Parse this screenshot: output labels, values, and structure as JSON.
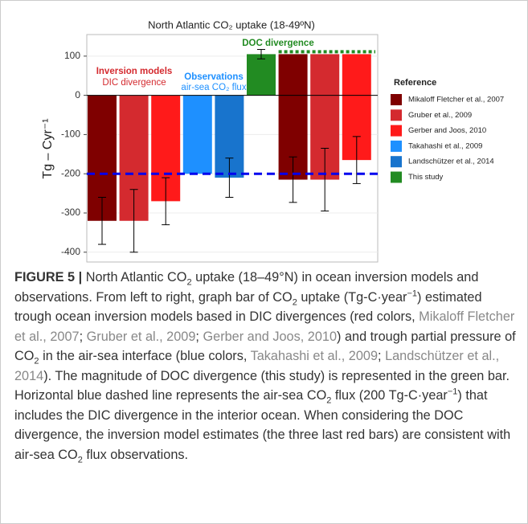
{
  "chart_data": {
    "type": "bar",
    "title": "North Atlantic CO₂ uptake (18-49ºN)",
    "ylabel": "Tg – Cyr⁻¹",
    "legend_title": "Reference",
    "series": [
      {
        "name": "Mikaloff Fletcher et al., 2007",
        "color": "#7f0000",
        "value": -320,
        "error": 60
      },
      {
        "name": "Gruber et al., 2009",
        "color": "#d42a2f",
        "value": -320,
        "error": 80
      },
      {
        "name": "Gerber and Joos, 2010",
        "color": "#ff1a1a",
        "value": -270,
        "error": 60
      },
      {
        "name": "Takahashi et al., 2009",
        "color": "#1e90ff",
        "value": -200,
        "error": null
      },
      {
        "name": "Landschützer et al., 2014",
        "color": "#1874cd",
        "value": -210,
        "error": 50
      },
      {
        "name": "This study",
        "color": "#228b22",
        "value": 105,
        "error": 12
      }
    ],
    "adjusted_errors": [
      58,
      80,
      60
    ],
    "hline": -200,
    "annotations": [
      "Inversion models",
      "DIC divergence",
      "Observations",
      "air-sea CO₂ flux",
      "DOC divergence"
    ],
    "ylim": [
      -425,
      155
    ],
    "yticks": [
      100,
      0,
      -100,
      -200,
      -300,
      -400
    ]
  },
  "caption": {
    "parts": [
      "FIGURE 5 |",
      " North Atlantic CO",
      "2",
      " uptake (18–49°N) in ocean inversion models and observations. From left to right, graph bar of CO",
      "2",
      " uptake (Tg-C·year",
      "−1",
      ") estimated trough ocean inversion models based in DIC divergences (red colors, ",
      "Mikaloff Fletcher et al., 2007",
      "; ",
      "Gruber et al., 2009",
      "; ",
      "Gerber and Joos, 2010",
      ") and trough partial pressure of CO",
      "2",
      " in the air-sea interface (blue colors, ",
      "Takahashi et al., 2009",
      "; ",
      "Landschützer et al., 2014",
      "). The magnitude of DOC divergence (this study) is represented in the green bar. Horizontal blue dashed line represents the air-sea CO",
      "2",
      " flux (200 Tg-C·year",
      "−1",
      ") that includes the DIC divergence in the interior ocean. When considering the DOC divergence, the inversion model estimates (the three last red bars) are consistent with air-sea CO",
      "2",
      " flux observations."
    ]
  }
}
